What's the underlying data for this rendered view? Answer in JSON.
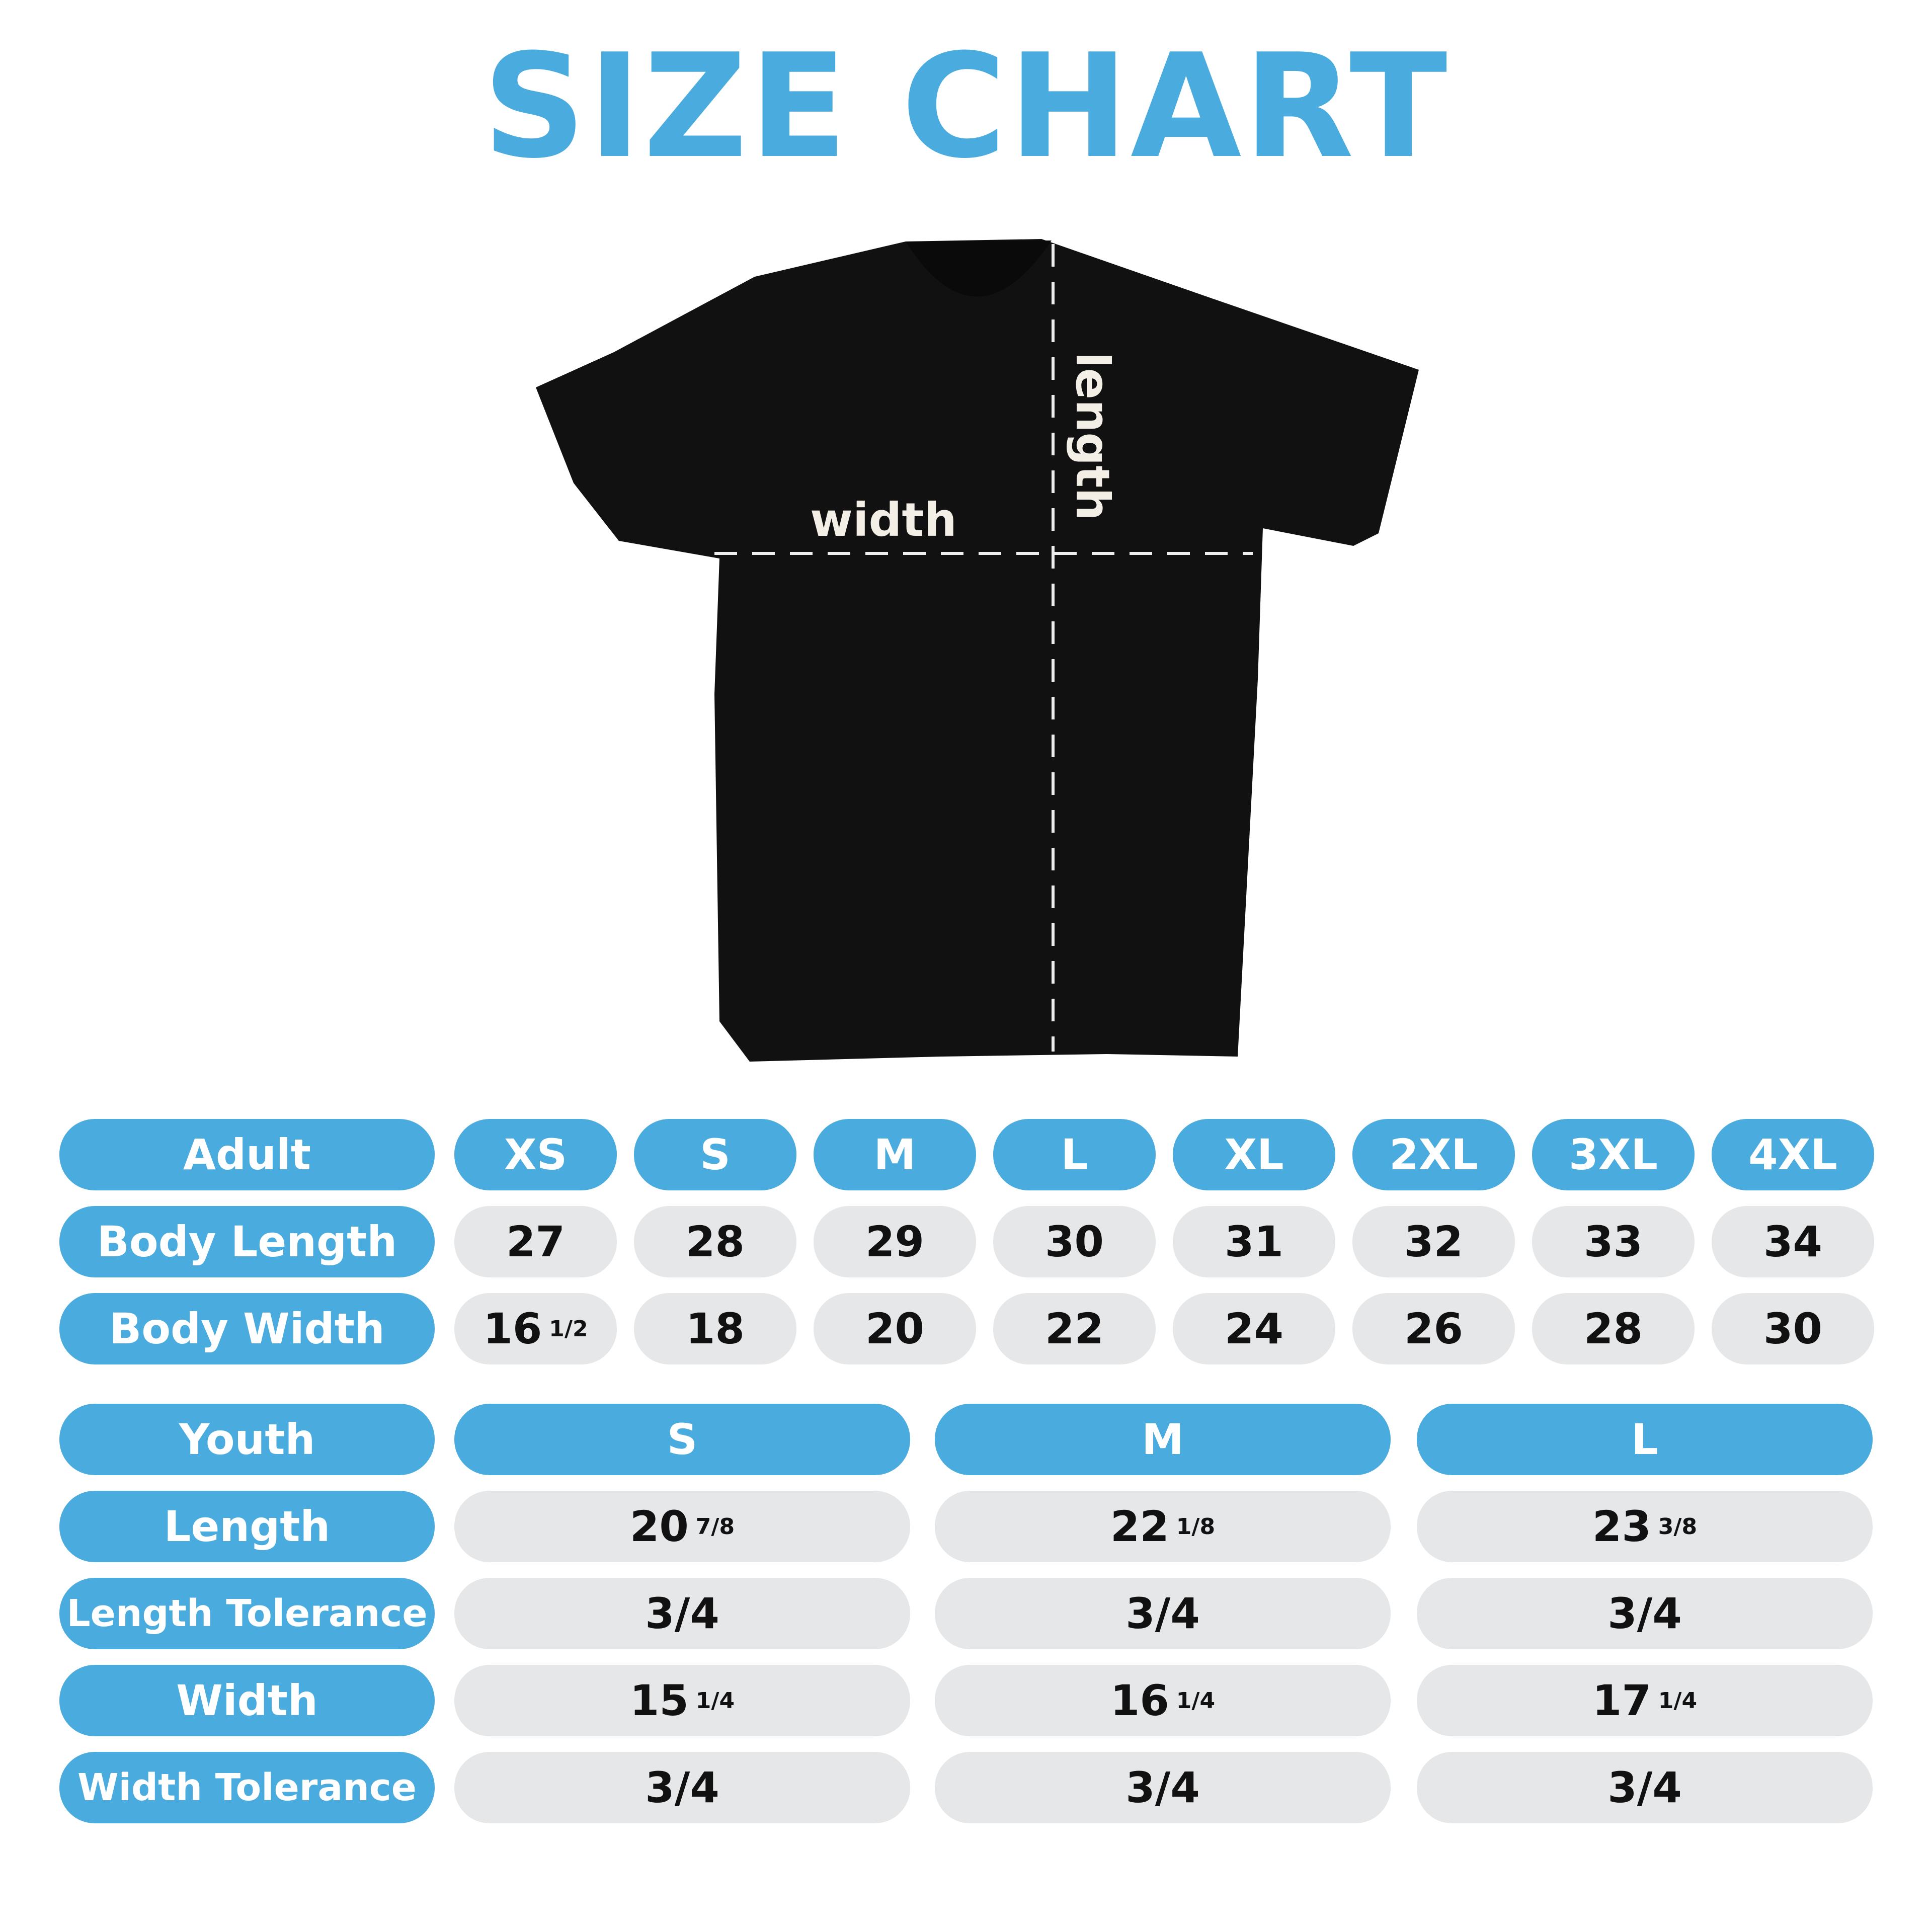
{
  "title": "SIZE CHART",
  "shirt": {
    "width_label": "width",
    "length_label": "length",
    "color": "#111111"
  },
  "colors": {
    "accent": "#4AABDF",
    "cell": "#E6E7E9"
  },
  "adult": {
    "header": "Adult",
    "sizes": [
      "XS",
      "S",
      "M",
      "L",
      "XL",
      "2XL",
      "3XL",
      "4XL"
    ],
    "rows": [
      {
        "label": "Body Length",
        "values": [
          [
            "27",
            ""
          ],
          [
            "28",
            ""
          ],
          [
            "29",
            ""
          ],
          [
            "30",
            ""
          ],
          [
            "31",
            ""
          ],
          [
            "32",
            ""
          ],
          [
            "33",
            ""
          ],
          [
            "34",
            ""
          ]
        ]
      },
      {
        "label": "Body Width",
        "values": [
          [
            "16",
            "1/2"
          ],
          [
            "18",
            ""
          ],
          [
            "20",
            ""
          ],
          [
            "22",
            ""
          ],
          [
            "24",
            ""
          ],
          [
            "26",
            ""
          ],
          [
            "28",
            ""
          ],
          [
            "30",
            ""
          ]
        ]
      }
    ]
  },
  "youth": {
    "header": "Youth",
    "sizes": [
      "S",
      "M",
      "L"
    ],
    "rows": [
      {
        "label": "Length",
        "values": [
          [
            "20",
            "7/8"
          ],
          [
            "22",
            "1/8"
          ],
          [
            "23",
            "3/8"
          ]
        ]
      },
      {
        "label": "Length Tolerance",
        "values": [
          [
            "3/4",
            ""
          ],
          [
            "3/4",
            ""
          ],
          [
            "3/4",
            ""
          ]
        ]
      },
      {
        "label": "Width",
        "values": [
          [
            "15",
            "1/4"
          ],
          [
            "16",
            "1/4"
          ],
          [
            "17",
            "1/4"
          ]
        ]
      },
      {
        "label": "Width Tolerance",
        "values": [
          [
            "3/4",
            ""
          ],
          [
            "3/4",
            ""
          ],
          [
            "3/4",
            ""
          ]
        ]
      }
    ]
  }
}
